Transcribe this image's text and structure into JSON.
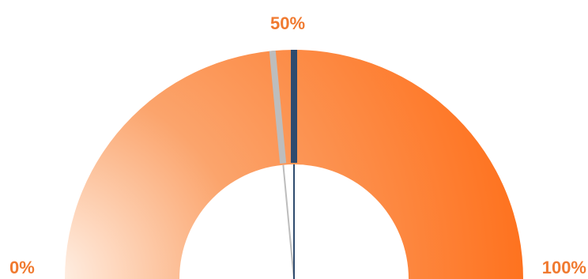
{
  "chart_data": {
    "type": "gauge",
    "range": [
      0,
      100
    ],
    "unit": "%",
    "tick_labels": [
      "0%",
      "50%",
      "100%"
    ],
    "markers": [
      {
        "name": "",
        "value": 47,
        "color": "#bdbdbd"
      },
      {
        "name": "",
        "value": 50,
        "color": "#2f4b6e"
      }
    ],
    "colors": {
      "fill_start": "#fff3ea",
      "fill_mid": "#fba46c",
      "fill_end": "#ff6a12",
      "label": "#f07a30"
    }
  }
}
